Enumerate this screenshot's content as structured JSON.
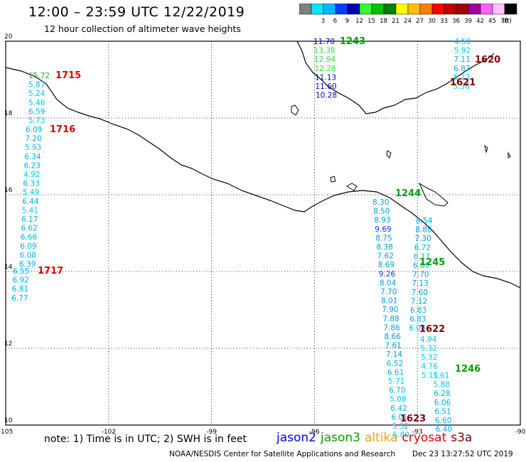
{
  "header": {
    "title": "12:00 – 23:59 UTC 12/22/2019",
    "subtitle": "12 hour collection of altimeter wave heights"
  },
  "legend": {
    "unit": "(ft)",
    "bins": [
      {
        "label": "",
        "color": "#808080"
      },
      {
        "label": "3",
        "color": "#00e8ff"
      },
      {
        "label": "6",
        "color": "#00b8ff"
      },
      {
        "label": "9",
        "color": "#0040ff"
      },
      {
        "label": "12",
        "color": "#0000b0"
      },
      {
        "label": "15",
        "color": "#30ff30"
      },
      {
        "label": "18",
        "color": "#00c000"
      },
      {
        "label": "21",
        "color": "#008000"
      },
      {
        "label": "24",
        "color": "#ffff00"
      },
      {
        "label": "27",
        "color": "#ffc000"
      },
      {
        "label": "30",
        "color": "#ff8000"
      },
      {
        "label": "33",
        "color": "#ff0000"
      },
      {
        "label": "36",
        "color": "#c00000"
      },
      {
        "label": "39",
        "color": "#a00000"
      },
      {
        "label": "42",
        "color": "#a000a0"
      },
      {
        "label": "45",
        "color": "#ff60ff"
      },
      {
        "label": "70",
        "color": "#ffc0ff"
      },
      {
        "label": "",
        "color": "#000000"
      }
    ]
  },
  "axes": {
    "lon_labels": [
      "-105",
      "-102",
      "-99",
      "-96",
      "-93",
      "-90"
    ],
    "lat_labels": [
      "20",
      "18",
      "16",
      "14",
      "12",
      "10"
    ]
  },
  "annotations": {
    "note": "note: 1) Time is in UTC; 2) SWH is in feet",
    "satellites": [
      {
        "name": "jason2",
        "color": "#0000ff"
      },
      {
        "name": "jason3",
        "color": "#00a000"
      },
      {
        "name": "altika",
        "color": "#ffa000"
      },
      {
        "name": "cryosat",
        "color": "#e00000"
      },
      {
        "name": "s3a",
        "color": "#800000"
      }
    ],
    "footer": "NOAA/NESDIS Center for Satellite Applications and Research",
    "footer_date": "Dec 23 13:27:52 UTC 2019"
  },
  "tracks": [
    {
      "time": "1715",
      "time_color": "#e00000",
      "values": [
        {
          "v": "15.72",
          "c": "#20b020"
        },
        {
          "v": "5.87",
          "c": "#00b8ff"
        },
        {
          "v": "5.24",
          "c": "#00c8ff"
        },
        {
          "v": "5.46",
          "c": "#00c8ff"
        },
        {
          "v": "6.59",
          "c": "#00b0f0"
        },
        {
          "v": "5.73",
          "c": "#00c8ff"
        }
      ]
    },
    {
      "time": "1716",
      "time_color": "#e00000",
      "values": [
        {
          "v": "6.09",
          "c": "#00b0f0"
        },
        {
          "v": "7.20",
          "c": "#00b0f0"
        },
        {
          "v": "5.93",
          "c": "#00c8ff"
        },
        {
          "v": "6.34",
          "c": "#00b0f0"
        },
        {
          "v": "6.23",
          "c": "#00b0f0"
        },
        {
          "v": "4.92",
          "c": "#00c8ff"
        },
        {
          "v": "6.33",
          "c": "#00b0f0"
        },
        {
          "v": "5.49",
          "c": "#00c8ff"
        },
        {
          "v": "6.44",
          "c": "#00b0f0"
        },
        {
          "v": "5.41",
          "c": "#00c8ff"
        },
        {
          "v": "6.17",
          "c": "#00b0f0"
        },
        {
          "v": "6.62",
          "c": "#00b0f0"
        },
        {
          "v": "6.66",
          "c": "#00b0f0"
        },
        {
          "v": "6.09",
          "c": "#00b0f0"
        },
        {
          "v": "6.08",
          "c": "#00b0f0"
        },
        {
          "v": "6.39",
          "c": "#00b0f0"
        }
      ]
    },
    {
      "time": "1717",
      "time_color": "#e00000",
      "values": [
        {
          "v": "6.55",
          "c": "#00b0f0"
        },
        {
          "v": "6.92",
          "c": "#00b0f0"
        },
        {
          "v": "6.81",
          "c": "#00b0f0"
        },
        {
          "v": "6.77",
          "c": "#00b0f0"
        }
      ]
    },
    {
      "time": "1243",
      "time_color": "#00a000",
      "values": [
        {
          "v": "11.70",
          "c": "#0000c0"
        },
        {
          "v": "13.38",
          "c": "#30e030"
        },
        {
          "v": "12.94",
          "c": "#30e030"
        },
        {
          "v": "12.28",
          "c": "#30e030"
        },
        {
          "v": "11.13",
          "c": "#0000c0"
        },
        {
          "v": "11.60",
          "c": "#0000c0"
        },
        {
          "v": "10.28",
          "c": "#0000c0"
        }
      ]
    },
    {
      "time": "1620",
      "time_color": "#800000",
      "values": [
        {
          "v": "4.50",
          "c": "#00c8ff"
        },
        {
          "v": "5.92",
          "c": "#00c8ff"
        },
        {
          "v": "7.11",
          "c": "#00b0f0"
        },
        {
          "v": "6.87",
          "c": "#00b0f0"
        },
        {
          "v": "5.73",
          "c": "#00c8ff"
        },
        {
          "v": "5.56",
          "c": "#00c8ff"
        }
      ]
    },
    {
      "time": "1621",
      "time_color": "#800000",
      "values": []
    },
    {
      "time": "1244",
      "time_color": "#00a000",
      "values": [
        {
          "v": "8.30",
          "c": "#00a0e0"
        },
        {
          "v": "8.50",
          "c": "#00a0e0"
        },
        {
          "v": "8.93",
          "c": "#00a0e0"
        },
        {
          "v": "9.69",
          "c": "#0040ff"
        },
        {
          "v": "8.75",
          "c": "#00a0e0"
        },
        {
          "v": "8.38",
          "c": "#00a0e0"
        },
        {
          "v": "7.62",
          "c": "#00a0e0"
        },
        {
          "v": "8.69",
          "c": "#00a0e0"
        },
        {
          "v": "9.26",
          "c": "#0040ff"
        },
        {
          "v": "8.04",
          "c": "#00a0e0"
        },
        {
          "v": "7.70",
          "c": "#00a0e0"
        },
        {
          "v": "8.01",
          "c": "#00a0e0"
        },
        {
          "v": "7.90",
          "c": "#00a0e0"
        },
        {
          "v": "7.88",
          "c": "#00a0e0"
        },
        {
          "v": "7.86",
          "c": "#00a0e0"
        },
        {
          "v": "8.66",
          "c": "#00a0e0"
        },
        {
          "v": "7.61",
          "c": "#00a0e0"
        },
        {
          "v": "7.14",
          "c": "#00a0e0"
        },
        {
          "v": "6.52",
          "c": "#00b0f0"
        },
        {
          "v": "6.61",
          "c": "#00b0f0"
        },
        {
          "v": "5.71",
          "c": "#00c8ff"
        },
        {
          "v": "6.70",
          "c": "#00b0f0"
        },
        {
          "v": "5.08",
          "c": "#00c8ff"
        },
        {
          "v": "6.42",
          "c": "#00b0f0"
        },
        {
          "v": "6.01",
          "c": "#00b0f0"
        },
        {
          "v": "5.32",
          "c": "#00c8ff"
        },
        {
          "v": "5.80",
          "c": "#00c8ff"
        }
      ]
    },
    {
      "time": "1245",
      "time_color": "#00a000",
      "values": [
        {
          "v": "8.54",
          "c": "#00a0e0"
        },
        {
          "v": "8.88",
          "c": "#00a0e0"
        },
        {
          "v": "7.30",
          "c": "#00a0e0"
        },
        {
          "v": "6.72",
          "c": "#00b0f0"
        },
        {
          "v": "6.17",
          "c": "#00b0f0"
        },
        {
          "v": "6.80",
          "c": "#00b0f0"
        },
        {
          "v": "7.70",
          "c": "#00a0e0"
        },
        {
          "v": "7.13",
          "c": "#00a0e0"
        },
        {
          "v": "7.60",
          "c": "#00a0e0"
        },
        {
          "v": "7.12",
          "c": "#00a0e0"
        },
        {
          "v": "6.83",
          "c": "#00b0f0"
        },
        {
          "v": "6.83",
          "c": "#00b0f0"
        },
        {
          "v": "6.08",
          "c": "#00b0f0"
        }
      ]
    },
    {
      "time": "1622",
      "time_color": "#800000",
      "values": [
        {
          "v": "4.94",
          "c": "#00c8ff"
        },
        {
          "v": "5.32",
          "c": "#00c8ff"
        },
        {
          "v": "5.32",
          "c": "#00c8ff"
        },
        {
          "v": "4.76",
          "c": "#00c8ff"
        },
        {
          "v": "5.11",
          "c": "#00c8ff"
        }
      ]
    },
    {
      "time": "1246",
      "time_color": "#00a000",
      "values": [
        {
          "v": "5.61",
          "c": "#00c8ff"
        },
        {
          "v": "5.88",
          "c": "#00c8ff"
        },
        {
          "v": "6.28",
          "c": "#00b0f0"
        },
        {
          "v": "6.06",
          "c": "#00b0f0"
        },
        {
          "v": "6.51",
          "c": "#00b0f0"
        },
        {
          "v": "6.60",
          "c": "#00b0f0"
        },
        {
          "v": "6.40",
          "c": "#00b0f0"
        }
      ]
    },
    {
      "time": "1623",
      "time_color": "#800000",
      "values": []
    }
  ]
}
